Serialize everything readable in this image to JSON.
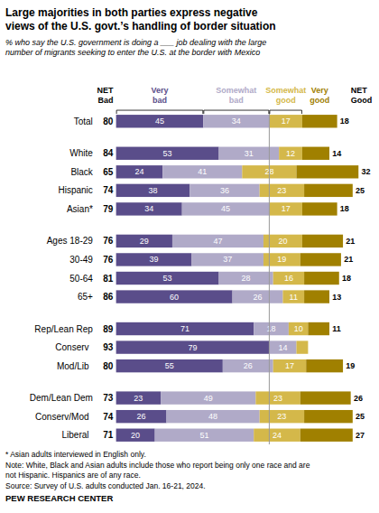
{
  "chart_data": {
    "type": "bar",
    "orientation": "horizontal",
    "stacked": true,
    "data_labels": true,
    "tick_labels": false,
    "title": "Large majorities in both parties express negative\nviews of the U.S. govt.’s handling of border situation",
    "subtitle": "% who say the U.S. government is doing a ___ job dealing with the large\nnumber of migrants seeking to enter the U.S. at the border with Mexico",
    "categories": [
      "Total",
      "White",
      "Black",
      "Hispanic",
      "Asian*",
      "Ages 18-29",
      "30-49",
      "50-64",
      "65+",
      "Rep/Lean Rep",
      "Conserv",
      "Mod/Lib",
      "Dem/Lean Dem",
      "Conserv/Mod",
      "Liberal"
    ],
    "xlim": [
      -58,
      130
    ],
    "series": [
      {
        "name": "Very bad",
        "color": "#5a4d8a",
        "values": [
          45,
          53,
          24,
          38,
          34,
          29,
          39,
          53,
          60,
          71,
          79,
          55,
          23,
          26,
          20
        ]
      },
      {
        "name": "Somewhat bad",
        "color": "#b0aac8",
        "values": [
          34,
          31,
          41,
          36,
          45,
          47,
          37,
          28,
          26,
          18,
          14,
          26,
          49,
          48,
          51
        ]
      },
      {
        "name": "Somewhat good",
        "color": "#d4b84a",
        "values": [
          17,
          12,
          28,
          23,
          17,
          20,
          19,
          16,
          11,
          10,
          6,
          17,
          23,
          23,
          24
        ],
        "value_labels": [
          "17",
          "12",
          "28",
          "23",
          "17",
          "20",
          "19",
          "16",
          "11",
          "10",
          null,
          "17",
          "23",
          "23",
          "24"
        ]
      },
      {
        "name": "Very good",
        "color": "#a08000",
        "values": [
          18,
          14,
          32,
          25,
          18,
          21,
          21,
          18,
          13,
          11,
          0,
          19,
          26,
          25,
          27
        ],
        "value_labels": [
          "18",
          "14",
          "32",
          "25",
          "18",
          "21",
          "21",
          "18",
          "13",
          "11",
          null,
          "19",
          "26",
          "25",
          "27"
        ]
      }
    ],
    "net_bad_label": "NET Bad",
    "net_bad": [
      80,
      84,
      65,
      74,
      79,
      76,
      76,
      81,
      86,
      89,
      93,
      80,
      73,
      74,
      71
    ],
    "net_good_label": "NET Good",
    "footnotes": [
      "* Asian adults interviewed in English only.",
      "Note: White, Black and Asian adults include those who report being only one race and are\nnot Hispanic. Hispanics are of any race.",
      "Source: Survey of U.S. adults conducted Jan. 16-21, 2024."
    ],
    "source": "PEW RESEARCH CENTER"
  }
}
